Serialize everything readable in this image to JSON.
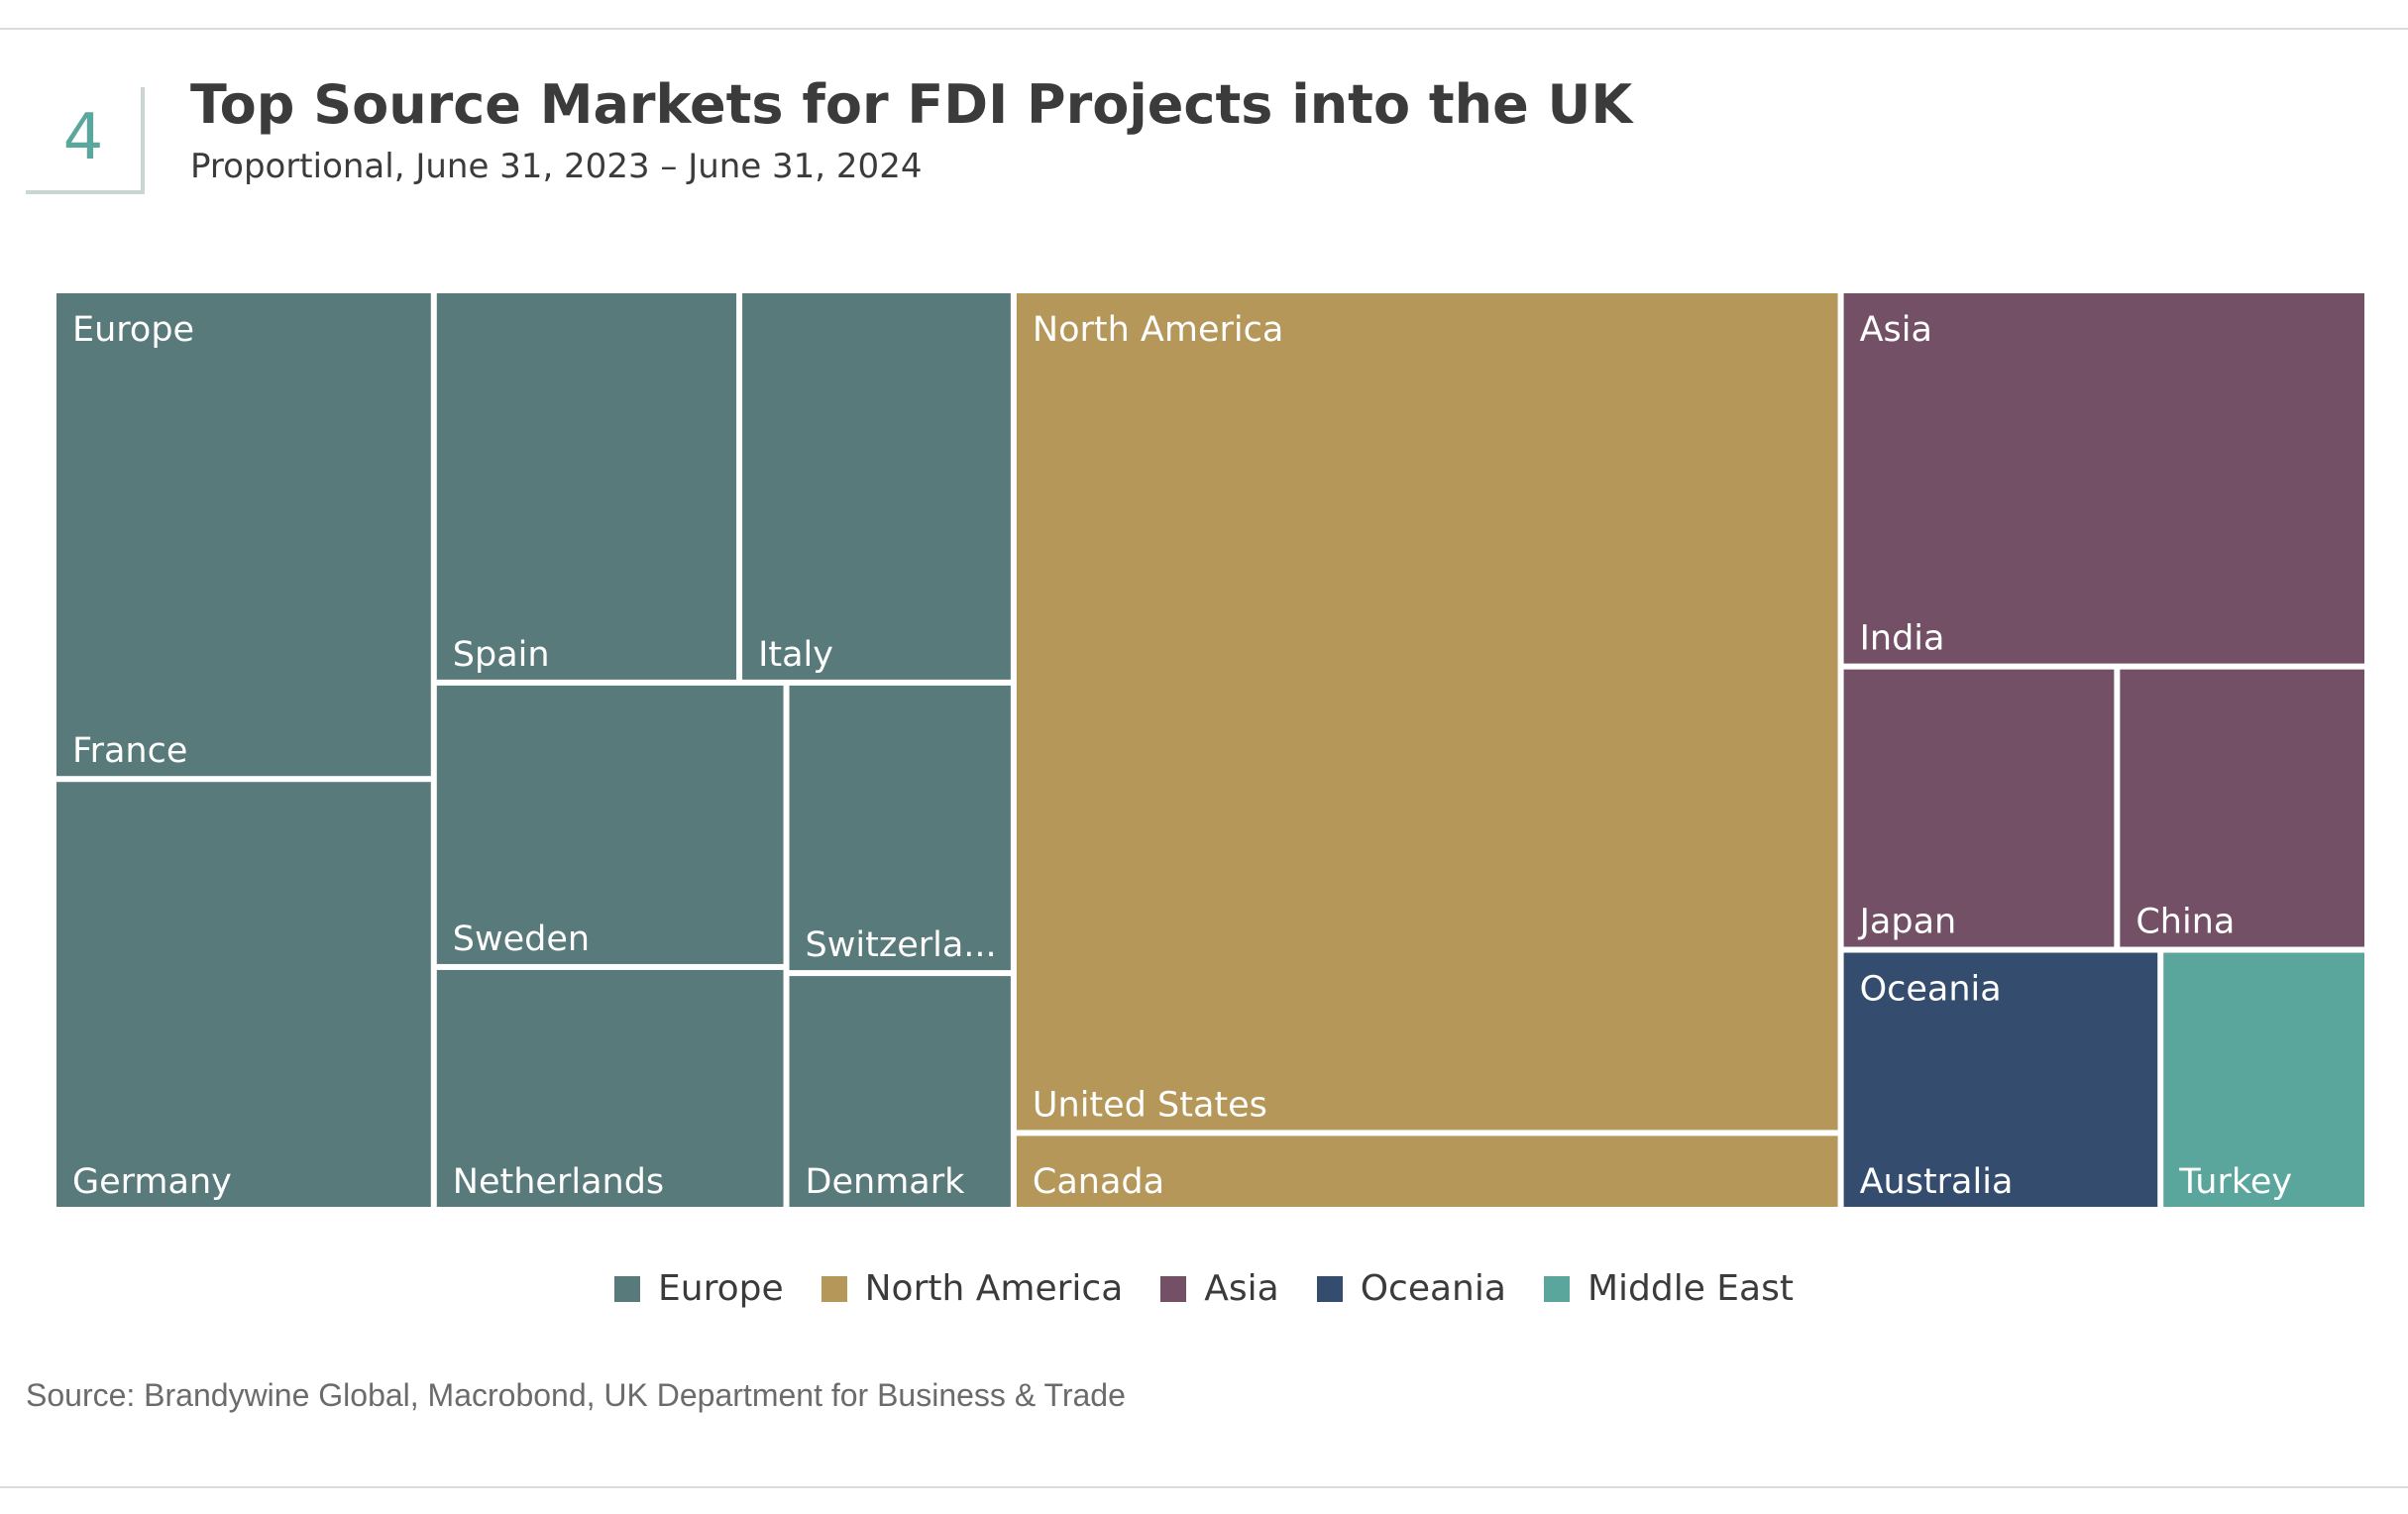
{
  "header": {
    "figure_number": "4",
    "title": "Top Source Markets for FDI Projects into the UK",
    "subtitle": "Proportional, June 31, 2023 – June 31, 2024"
  },
  "colors": {
    "Europe": "#597a7a",
    "North America": "#b5975a",
    "Asia": "#735065",
    "Oceania": "#344d6e",
    "Middle East": "#5aa69d"
  },
  "chart_data": {
    "type": "treemap",
    "title": "Top Source Markets for FDI Projects into the UK",
    "groups": [
      {
        "name": "Europe",
        "show_label": true,
        "items": [
          {
            "label": "France",
            "value": 7.6
          },
          {
            "label": "Germany",
            "value": 6.7
          },
          {
            "label": "Spain",
            "value": 4.9
          },
          {
            "label": "Italy",
            "value": 4.4
          },
          {
            "label": "Sweden",
            "value": 4.1
          },
          {
            "label": "Netherlands",
            "value": 3.5
          },
          {
            "label": "Switzerland",
            "display": "Switzerla...",
            "value": 2.7
          },
          {
            "label": "Denmark",
            "value": 2.2
          }
        ]
      },
      {
        "name": "North America",
        "show_label": true,
        "items": [
          {
            "label": "United States",
            "value": 28.5
          },
          {
            "label": "Canada",
            "value": 2.6
          }
        ]
      },
      {
        "name": "Asia",
        "show_label": true,
        "items": [
          {
            "label": "India",
            "value": 8.1
          },
          {
            "label": "Japan",
            "value": 3.2
          },
          {
            "label": "China",
            "value": 2.9
          }
        ]
      },
      {
        "name": "Oceania",
        "show_label": true,
        "items": [
          {
            "label": "Australia",
            "value": 3.4
          }
        ]
      },
      {
        "name": "Middle East",
        "show_label": false,
        "items": [
          {
            "label": "Turkey",
            "value": 2.2
          }
        ]
      }
    ]
  },
  "legend": [
    {
      "label": "Europe"
    },
    {
      "label": "North America"
    },
    {
      "label": "Asia"
    },
    {
      "label": "Oceania"
    },
    {
      "label": "Middle East"
    }
  ],
  "source": "Source: Brandywine Global, Macrobond, UK Department for Business & Trade"
}
